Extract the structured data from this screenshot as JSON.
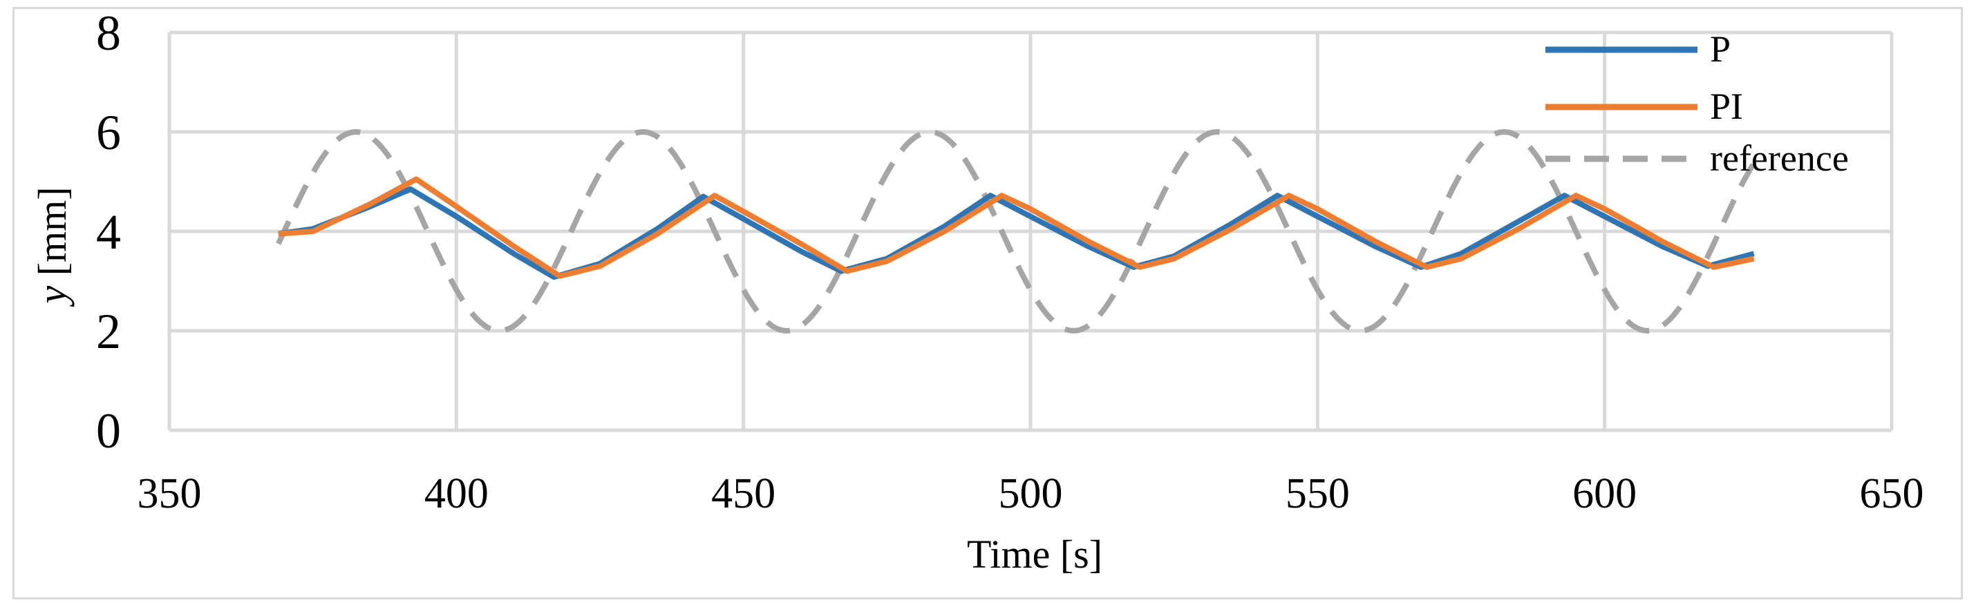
{
  "chart_data": {
    "type": "line",
    "title": "",
    "xlabel": "Time [s]",
    "ylabel_var": "y",
    "ylabel_unit": " [mm]",
    "xlim": [
      350,
      650
    ],
    "ylim": [
      0,
      8
    ],
    "xticks": [
      350,
      400,
      450,
      500,
      550,
      600,
      650
    ],
    "yticks": [
      0,
      2,
      4,
      6,
      8
    ],
    "grid": true,
    "legend_position": "top-right",
    "series": [
      {
        "name": "P",
        "color": "#2e75b6",
        "style": "solid",
        "x": [
          369,
          375,
          385,
          392,
          400,
          410,
          417,
          425,
          435,
          443,
          450,
          460,
          467,
          475,
          485,
          493,
          500,
          510,
          518,
          525,
          535,
          543,
          550,
          560,
          568,
          575,
          585,
          593,
          600,
          610,
          618,
          626
        ],
        "y": [
          3.95,
          4.05,
          4.5,
          4.85,
          4.3,
          3.55,
          3.08,
          3.35,
          4.05,
          4.7,
          4.25,
          3.6,
          3.2,
          3.45,
          4.1,
          4.72,
          4.3,
          3.7,
          3.28,
          3.5,
          4.15,
          4.72,
          4.3,
          3.7,
          3.28,
          3.55,
          4.2,
          4.72,
          4.3,
          3.7,
          3.3,
          3.55
        ]
      },
      {
        "name": "PI",
        "color": "#ed7d31",
        "style": "solid",
        "x": [
          369,
          375,
          385,
          393,
          400,
          410,
          418,
          425,
          435,
          445,
          450,
          460,
          468,
          475,
          485,
          495,
          500,
          510,
          519,
          525,
          535,
          545,
          550,
          560,
          569,
          575,
          585,
          595,
          600,
          610,
          619,
          626
        ],
        "y": [
          3.95,
          4.0,
          4.55,
          5.05,
          4.5,
          3.7,
          3.1,
          3.3,
          3.95,
          4.72,
          4.4,
          3.75,
          3.2,
          3.4,
          4.0,
          4.72,
          4.45,
          3.8,
          3.28,
          3.45,
          4.05,
          4.72,
          4.45,
          3.8,
          3.28,
          3.45,
          4.05,
          4.72,
          4.45,
          3.8,
          3.28,
          3.45
        ]
      },
      {
        "name": "reference",
        "color": "#a5a5a5",
        "style": "dashed",
        "function": "4 + 2*sin(2*pi*(t-370)/50)",
        "x_start": 369,
        "x_end": 626
      }
    ]
  }
}
